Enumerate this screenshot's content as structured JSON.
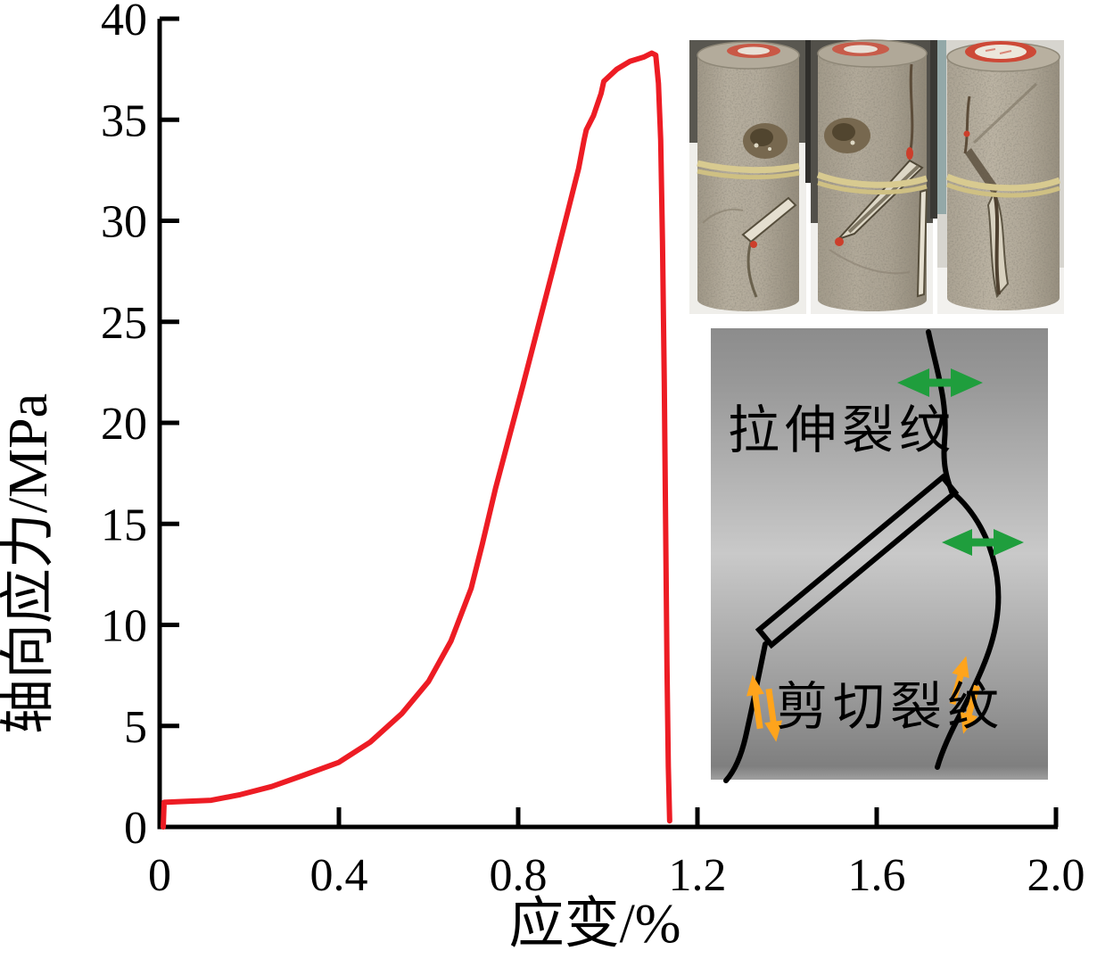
{
  "figure": {
    "xlabel": "应变/%",
    "ylabel": "轴向应力/MPa"
  },
  "chart_data": {
    "type": "line",
    "title": "",
    "xlabel": "应变/%",
    "ylabel": "轴向应力/MPa",
    "xlim": [
      0,
      2.0
    ],
    "ylim": [
      0,
      40
    ],
    "xticks": [
      "0",
      "0.4",
      "0.8",
      "1.2",
      "1.6",
      "2.0"
    ],
    "yticks": [
      "0",
      "5",
      "10",
      "15",
      "20",
      "25",
      "30",
      "35",
      "40"
    ],
    "grid": false,
    "legend": "none",
    "curve_color": "#ed1c24",
    "series": [
      {
        "name": "axial-stress-strain-curve",
        "color": "#ed1c24",
        "points": [
          [
            0.008,
            0
          ],
          [
            0.01,
            1.22
          ],
          [
            0.05,
            1.26
          ],
          [
            0.115,
            1.32
          ],
          [
            0.18,
            1.6
          ],
          [
            0.25,
            2.0
          ],
          [
            0.32,
            2.55
          ],
          [
            0.4,
            3.2
          ],
          [
            0.47,
            4.2
          ],
          [
            0.54,
            5.6
          ],
          [
            0.6,
            7.2
          ],
          [
            0.65,
            9.2
          ],
          [
            0.695,
            11.8
          ],
          [
            0.72,
            14.0
          ],
          [
            0.75,
            16.8
          ],
          [
            0.78,
            19.3
          ],
          [
            0.81,
            21.8
          ],
          [
            0.845,
            24.8
          ],
          [
            0.88,
            27.8
          ],
          [
            0.91,
            30.4
          ],
          [
            0.935,
            32.6
          ],
          [
            0.947,
            34.0
          ],
          [
            0.952,
            34.5
          ],
          [
            0.968,
            35.2
          ],
          [
            0.985,
            36.3
          ],
          [
            0.991,
            36.9
          ],
          [
            1.02,
            37.5
          ],
          [
            1.05,
            37.9
          ],
          [
            1.08,
            38.1
          ],
          [
            1.098,
            38.3
          ],
          [
            1.107,
            38.2
          ],
          [
            1.113,
            36.8
          ],
          [
            1.118,
            34.0
          ],
          [
            1.122,
            29.0
          ],
          [
            1.126,
            22.0
          ],
          [
            1.129,
            15.0
          ],
          [
            1.132,
            8.0
          ],
          [
            1.135,
            3.0
          ],
          [
            1.138,
            0.3
          ]
        ]
      }
    ],
    "features": {
      "initial_seating_stress_MPa": 1.3,
      "peak_stress_MPa": 38.3,
      "strain_at_peak_pct": 1.1,
      "brittle_drop_strain_pct": 1.14
    }
  },
  "inset_photos": {
    "count": 3,
    "description": "three fractured cylindrical rock specimens with rubber bands"
  },
  "inset_diagram": {
    "tensile_label": "拉伸裂纹",
    "shear_label": "剪切裂纹",
    "arrow_green": "#1f9e3d",
    "arrow_orange": "#ffa41c"
  }
}
